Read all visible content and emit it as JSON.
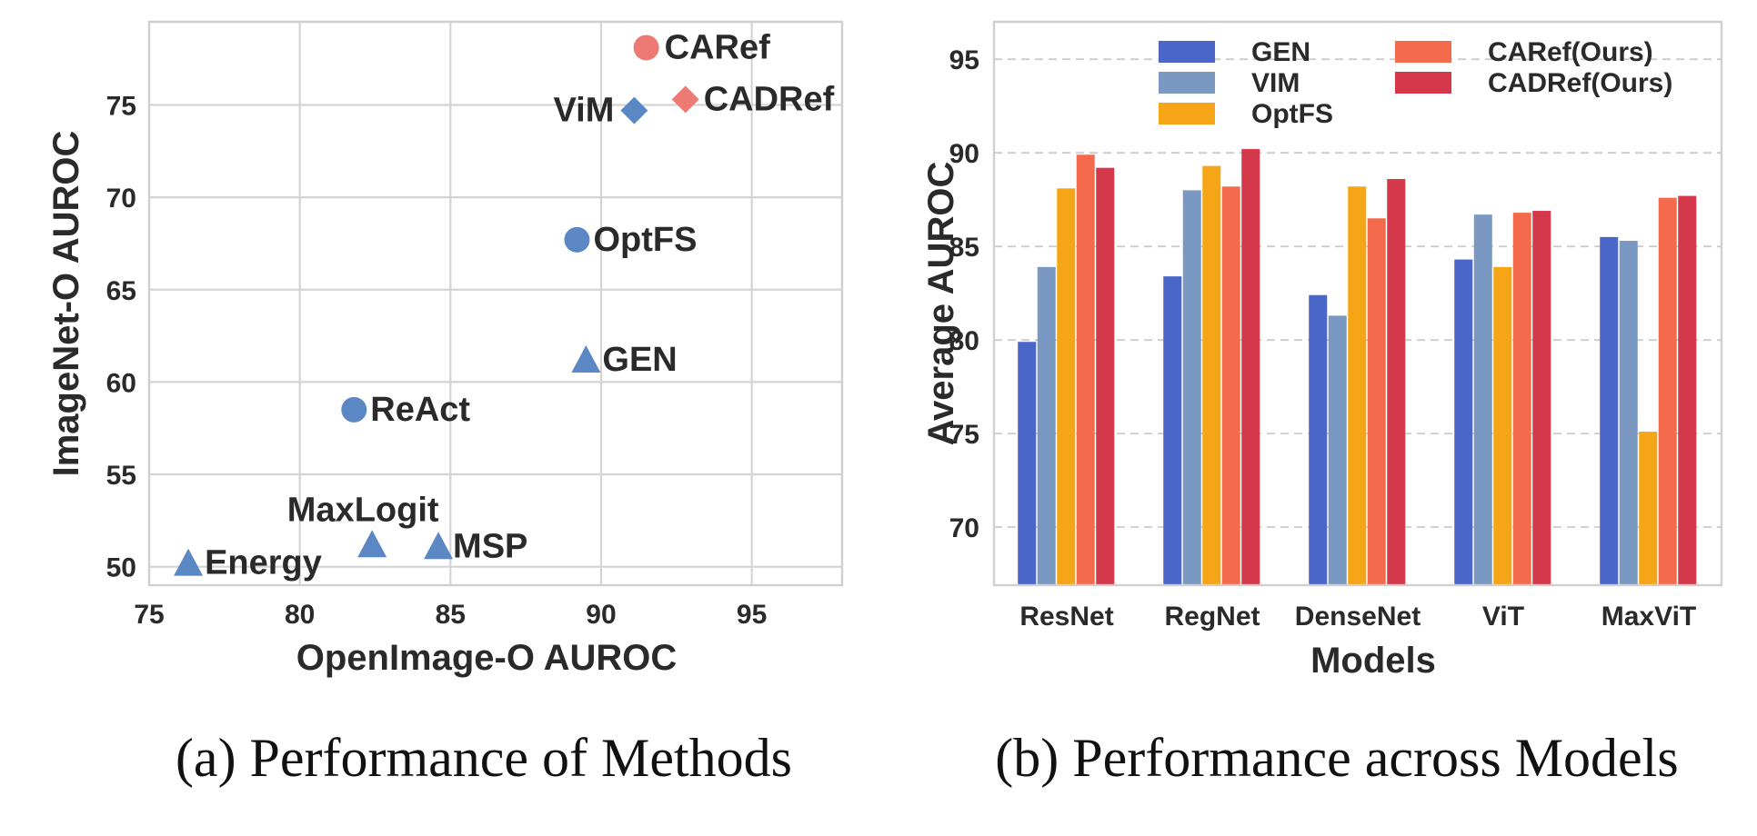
{
  "chart_data": [
    {
      "type": "scatter",
      "title": "",
      "xlabel": "OpenImage-O AUROC",
      "ylabel": "ImageNet-O AUROC",
      "xlim": [
        75,
        98
      ],
      "ylim": [
        49,
        79.5
      ],
      "xticks": [
        75,
        80,
        85,
        90,
        95
      ],
      "yticks": [
        50,
        55,
        60,
        65,
        70,
        75
      ],
      "grid": true,
      "points": [
        {
          "label": "CARef",
          "x": 91.5,
          "y": 78.1,
          "marker": "circle",
          "color": "#ee7b73"
        },
        {
          "label": "CADRef",
          "x": 92.8,
          "y": 75.3,
          "marker": "diamond",
          "color": "#ee7b73"
        },
        {
          "label": "ViM",
          "x": 91.1,
          "y": 74.7,
          "marker": "diamond",
          "color": "#5b88c4"
        },
        {
          "label": "OptFS",
          "x": 89.2,
          "y": 67.7,
          "marker": "circle",
          "color": "#5b88c4"
        },
        {
          "label": "GEN",
          "x": 89.5,
          "y": 61.2,
          "marker": "triangle",
          "color": "#5b88c4"
        },
        {
          "label": "ReAct",
          "x": 81.8,
          "y": 58.5,
          "marker": "circle",
          "color": "#5b88c4"
        },
        {
          "label": "MaxLogit",
          "x": 82.4,
          "y": 51.2,
          "marker": "triangle",
          "color": "#5b88c4"
        },
        {
          "label": "MSP",
          "x": 84.6,
          "y": 51.1,
          "marker": "triangle",
          "color": "#5b88c4"
        },
        {
          "label": "Energy",
          "x": 76.3,
          "y": 50.2,
          "marker": "triangle",
          "color": "#5b88c4"
        }
      ],
      "caption": "(a) Performance of Methods"
    },
    {
      "type": "bar",
      "title": "",
      "xlabel": "Models",
      "ylabel": "Average AUROC",
      "ylim": [
        66.9,
        97
      ],
      "yticks": [
        70,
        75,
        80,
        85,
        90,
        95
      ],
      "grid": true,
      "legend": "top",
      "categories": [
        "ResNet",
        "RegNet",
        "DenseNet",
        "ViT",
        "MaxViT"
      ],
      "series": [
        {
          "name": "GEN",
          "color": "#4a66c8",
          "values": [
            79.9,
            83.4,
            82.4,
            84.3,
            85.5
          ]
        },
        {
          "name": "VIM",
          "color": "#7a98c2",
          "values": [
            83.9,
            88.0,
            81.3,
            86.7,
            85.3
          ]
        },
        {
          "name": "OptFS",
          "color": "#f5a515",
          "values": [
            88.1,
            89.3,
            88.2,
            83.9,
            75.1
          ]
        },
        {
          "name": "CARef(Ours)",
          "color": "#f36a4c",
          "values": [
            89.9,
            88.2,
            86.5,
            86.8,
            87.6
          ]
        },
        {
          "name": "CADRef(Ours)",
          "color": "#d4384a",
          "values": [
            89.2,
            90.2,
            88.6,
            86.9,
            87.7
          ]
        }
      ],
      "caption": "(b) Performance across Models"
    }
  ]
}
